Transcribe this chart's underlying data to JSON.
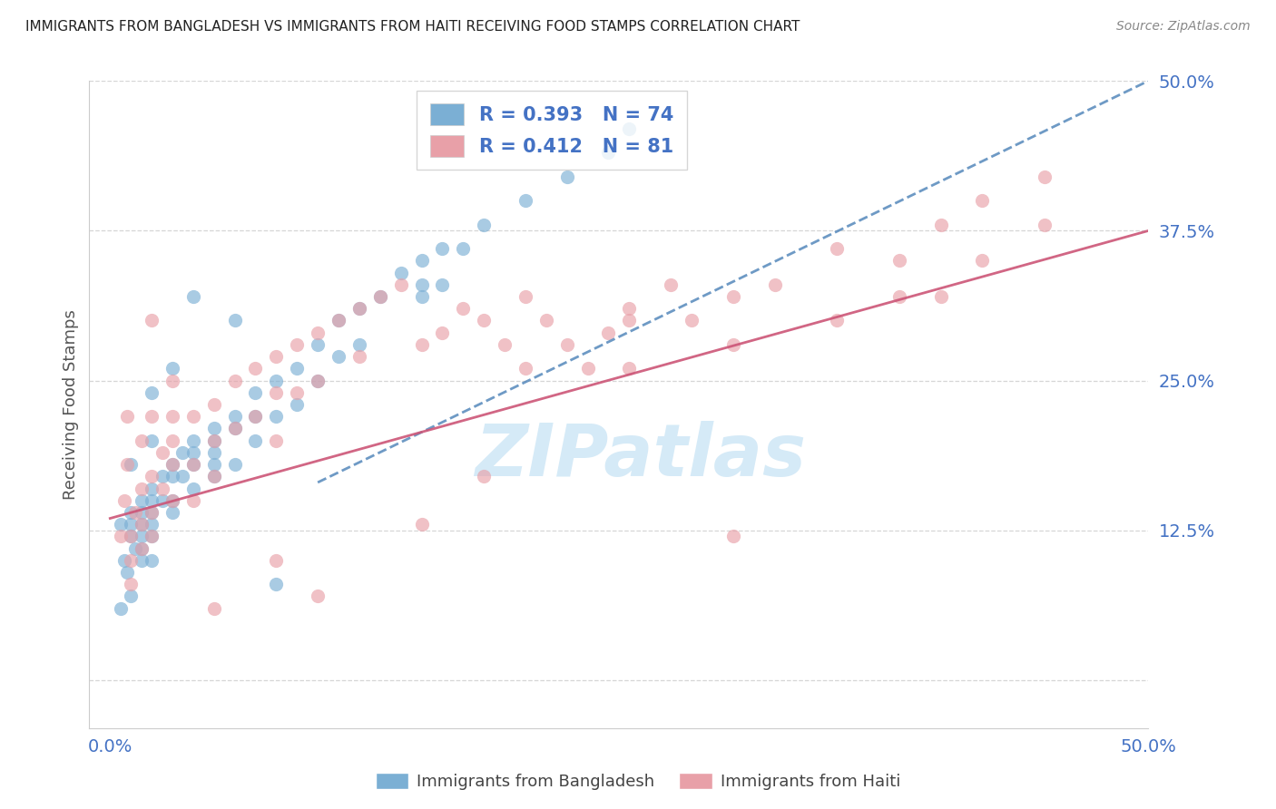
{
  "title": "IMMIGRANTS FROM BANGLADESH VS IMMIGRANTS FROM HAITI RECEIVING FOOD STAMPS CORRELATION CHART",
  "source": "Source: ZipAtlas.com",
  "ylabel": "Receiving Food Stamps",
  "yticks": [
    0.0,
    0.125,
    0.25,
    0.375,
    0.5
  ],
  "ytick_labels": [
    "",
    "12.5%",
    "25.0%",
    "37.5%",
    "50.0%"
  ],
  "xlim": [
    -0.01,
    0.5
  ],
  "ylim": [
    -0.04,
    0.5
  ],
  "R_bangladesh": 0.393,
  "N_bangladesh": 74,
  "R_haiti": 0.412,
  "N_haiti": 81,
  "blue_color": "#7bafd4",
  "pink_color": "#e8a0a8",
  "blue_line_color": "#5588bb",
  "pink_line_color": "#cc5577",
  "axis_label_color": "#4472c4",
  "title_color": "#222222",
  "grid_color": "#cccccc",
  "watermark": "ZIPatlas",
  "watermark_color": "#d5eaf7",
  "bangladesh_x": [
    0.005,
    0.007,
    0.008,
    0.01,
    0.01,
    0.01,
    0.012,
    0.015,
    0.015,
    0.015,
    0.015,
    0.015,
    0.015,
    0.02,
    0.02,
    0.02,
    0.02,
    0.02,
    0.02,
    0.025,
    0.025,
    0.03,
    0.03,
    0.03,
    0.03,
    0.035,
    0.035,
    0.04,
    0.04,
    0.04,
    0.04,
    0.05,
    0.05,
    0.05,
    0.05,
    0.05,
    0.06,
    0.06,
    0.06,
    0.07,
    0.07,
    0.07,
    0.08,
    0.08,
    0.09,
    0.09,
    0.1,
    0.1,
    0.11,
    0.11,
    0.12,
    0.12,
    0.13,
    0.14,
    0.15,
    0.15,
    0.16,
    0.16,
    0.18,
    0.2,
    0.22,
    0.24,
    0.25,
    0.15,
    0.17,
    0.08,
    0.06,
    0.04,
    0.03,
    0.02,
    0.02,
    0.01,
    0.01,
    0.005
  ],
  "bangladesh_y": [
    0.13,
    0.1,
    0.09,
    0.14,
    0.13,
    0.12,
    0.11,
    0.15,
    0.14,
    0.13,
    0.12,
    0.11,
    0.1,
    0.16,
    0.15,
    0.14,
    0.13,
    0.12,
    0.1,
    0.17,
    0.15,
    0.18,
    0.17,
    0.15,
    0.14,
    0.19,
    0.17,
    0.2,
    0.19,
    0.18,
    0.16,
    0.21,
    0.2,
    0.19,
    0.18,
    0.17,
    0.22,
    0.21,
    0.18,
    0.24,
    0.22,
    0.2,
    0.25,
    0.22,
    0.26,
    0.23,
    0.28,
    0.25,
    0.3,
    0.27,
    0.31,
    0.28,
    0.32,
    0.34,
    0.35,
    0.32,
    0.36,
    0.33,
    0.38,
    0.4,
    0.42,
    0.44,
    0.46,
    0.33,
    0.36,
    0.08,
    0.3,
    0.32,
    0.26,
    0.24,
    0.2,
    0.18,
    0.07,
    0.06
  ],
  "haiti_x": [
    0.005,
    0.007,
    0.008,
    0.008,
    0.01,
    0.01,
    0.01,
    0.012,
    0.015,
    0.015,
    0.015,
    0.015,
    0.02,
    0.02,
    0.02,
    0.02,
    0.025,
    0.025,
    0.03,
    0.03,
    0.03,
    0.03,
    0.04,
    0.04,
    0.04,
    0.05,
    0.05,
    0.05,
    0.06,
    0.06,
    0.07,
    0.07,
    0.08,
    0.08,
    0.08,
    0.09,
    0.09,
    0.1,
    0.1,
    0.11,
    0.12,
    0.12,
    0.13,
    0.14,
    0.15,
    0.16,
    0.17,
    0.18,
    0.19,
    0.2,
    0.21,
    0.22,
    0.23,
    0.24,
    0.25,
    0.27,
    0.28,
    0.3,
    0.32,
    0.35,
    0.38,
    0.4,
    0.42,
    0.45,
    0.3,
    0.25,
    0.2,
    0.35,
    0.4,
    0.45,
    0.3,
    0.15,
    0.1,
    0.08,
    0.05,
    0.03,
    0.02,
    0.38,
    0.42,
    0.25,
    0.18
  ],
  "haiti_y": [
    0.12,
    0.15,
    0.18,
    0.22,
    0.12,
    0.1,
    0.08,
    0.14,
    0.16,
    0.13,
    0.11,
    0.2,
    0.17,
    0.14,
    0.12,
    0.22,
    0.19,
    0.16,
    0.2,
    0.18,
    0.15,
    0.25,
    0.22,
    0.18,
    0.15,
    0.23,
    0.2,
    0.17,
    0.25,
    0.21,
    0.26,
    0.22,
    0.27,
    0.24,
    0.2,
    0.28,
    0.24,
    0.29,
    0.25,
    0.3,
    0.31,
    0.27,
    0.32,
    0.33,
    0.28,
    0.29,
    0.31,
    0.3,
    0.28,
    0.32,
    0.3,
    0.28,
    0.26,
    0.29,
    0.31,
    0.33,
    0.3,
    0.32,
    0.33,
    0.36,
    0.35,
    0.38,
    0.4,
    0.42,
    0.28,
    0.3,
    0.26,
    0.3,
    0.32,
    0.38,
    0.12,
    0.13,
    0.07,
    0.1,
    0.06,
    0.22,
    0.3,
    0.32,
    0.35,
    0.26,
    0.17
  ],
  "bangladesh_trend_x": [
    0.1,
    0.5
  ],
  "bangladesh_trend_y": [
    0.165,
    0.5
  ],
  "haiti_trend_x": [
    0.0,
    0.5
  ],
  "haiti_trend_y": [
    0.135,
    0.375
  ]
}
